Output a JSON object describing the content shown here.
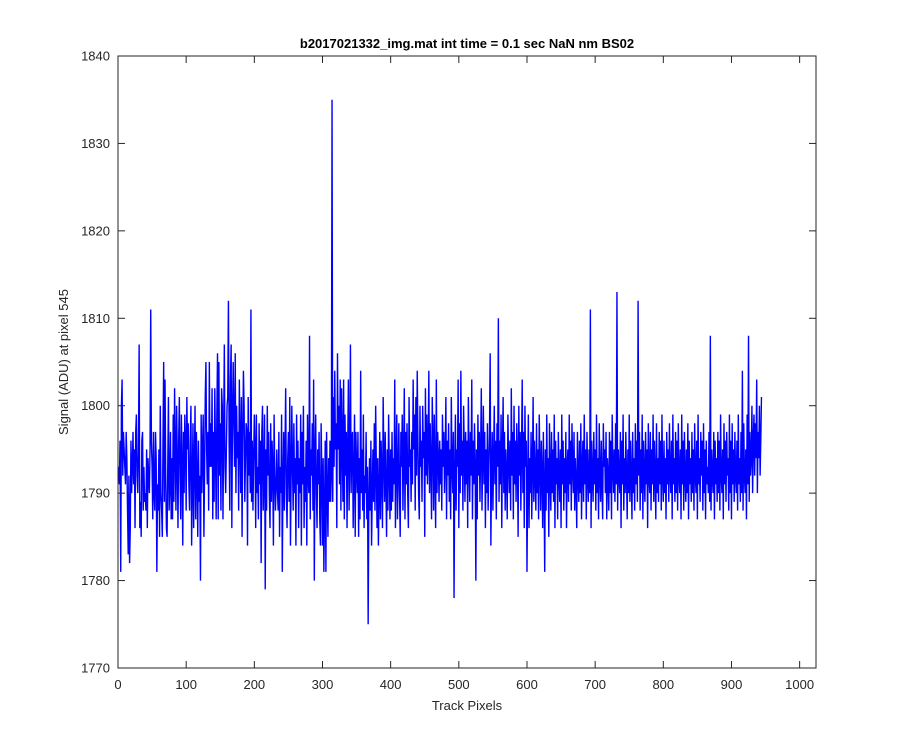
{
  "chart_data": {
    "type": "line",
    "title": "b2017021332_img.mat int time = 0.1 sec  NaN nm BS02",
    "xlabel": "Track Pixels",
    "ylabel": "Signal (ADU) at pixel 545",
    "xlim": [
      0,
      1024
    ],
    "ylim": [
      1770,
      1840
    ],
    "xticks": [
      0,
      100,
      200,
      300,
      400,
      500,
      600,
      700,
      800,
      900,
      1000
    ],
    "yticks": [
      1770,
      1780,
      1790,
      1800,
      1810,
      1820,
      1830,
      1840
    ],
    "xtick_labels": [
      "0",
      "100",
      "200",
      "300",
      "400",
      "500",
      "600",
      "700",
      "800",
      "900",
      "1000"
    ],
    "ytick_labels": [
      "1770",
      "1780",
      "1790",
      "1800",
      "1810",
      "1820",
      "1830",
      "1840"
    ],
    "grid": false,
    "legend": "none",
    "line_color": "#0000ff",
    "series": [
      {
        "x_start": 1,
        "x_step": 1,
        "values": [
          1793,
          1791,
          1796,
          1781,
          1800,
          1803,
          1792,
          1797,
          1795,
          1793,
          1791,
          1797,
          1794,
          1788,
          1783,
          1792,
          1782,
          1786,
          1796,
          1790,
          1793,
          1797,
          1791,
          1795,
          1786,
          1797,
          1799,
          1792,
          1790,
          1795,
          1807,
          1786,
          1789,
          1785,
          1796,
          1797,
          1788,
          1793,
          1789,
          1790,
          1788,
          1795,
          1786,
          1794,
          1792,
          1790,
          1795,
          1811,
          1796,
          1793,
          1787,
          1797,
          1790,
          1788,
          1797,
          1794,
          1781,
          1791,
          1788,
          1795,
          1785,
          1800,
          1790,
          1788,
          1785,
          1796,
          1805,
          1789,
          1803,
          1792,
          1786,
          1785,
          1793,
          1801,
          1788,
          1791,
          1797,
          1787,
          1794,
          1787,
          1799,
          1789,
          1802,
          1795,
          1788,
          1800,
          1794,
          1786,
          1796,
          1801,
          1792,
          1787,
          1799,
          1793,
          1784,
          1797,
          1790,
          1799,
          1796,
          1788,
          1801,
          1795,
          1798,
          1791,
          1788,
          1796,
          1800,
          1784,
          1791,
          1798,
          1786,
          1793,
          1800,
          1787,
          1797,
          1792,
          1785,
          1796,
          1789,
          1792,
          1780,
          1799,
          1790,
          1795,
          1799,
          1785,
          1792,
          1801,
          1805,
          1795,
          1791,
          1797,
          1788,
          1805,
          1793,
          1798,
          1793,
          1802,
          1787,
          1797,
          1789,
          1802,
          1795,
          1787,
          1799,
          1806,
          1787,
          1805,
          1792,
          1798,
          1788,
          1802,
          1800,
          1787,
          1797,
          1807,
          1793,
          1790,
          1795,
          1800,
          1801,
          1812,
          1796,
          1788,
          1803,
          1807,
          1786,
          1799,
          1805,
          1798,
          1793,
          1806,
          1790,
          1800,
          1794,
          1797,
          1788,
          1803,
          1796,
          1790,
          1801,
          1785,
          1796,
          1804,
          1800,
          1789,
          1794,
          1798,
          1797,
          1784,
          1801,
          1792,
          1797,
          1790,
          1811,
          1789,
          1796,
          1788,
          1794,
          1799,
          1795,
          1786,
          1799,
          1790,
          1793,
          1787,
          1798,
          1791,
          1796,
          1782,
          1797,
          1800,
          1788,
          1792,
          1799,
          1779,
          1795,
          1788,
          1800,
          1792,
          1797,
          1790,
          1786,
          1798,
          1789,
          1796,
          1793,
          1784,
          1799,
          1792,
          1788,
          1791,
          1795,
          1790,
          1788,
          1797,
          1785,
          1793,
          1790,
          1799,
          1781,
          1791,
          1797,
          1788,
          1795,
          1802,
          1790,
          1786,
          1794,
          1797,
          1789,
          1801,
          1784,
          1792,
          1800,
          1793,
          1788,
          1798,
          1790,
          1794,
          1784,
          1799,
          1791,
          1796,
          1786,
          1794,
          1790,
          1799,
          1784,
          1797,
          1791,
          1800,
          1786,
          1793,
          1789,
          1796,
          1784,
          1799,
          1792,
          1790,
          1808,
          1787,
          1795,
          1792,
          1798,
          1788,
          1803,
          1780,
          1794,
          1799,
          1790,
          1786,
          1795,
          1791,
          1797,
          1787,
          1784,
          1798,
          1792,
          1784,
          1794,
          1781,
          1788,
          1796,
          1781,
          1797,
          1790,
          1785,
          1794,
          1789,
          1796,
          1789,
          1792,
          1835,
          1789,
          1801,
          1793,
          1804,
          1795,
          1798,
          1786,
          1806,
          1795,
          1800,
          1791,
          1803,
          1788,
          1802,
          1796,
          1789,
          1803,
          1787,
          1799,
          1792,
          1797,
          1786,
          1795,
          1803,
          1788,
          1794,
          1807,
          1790,
          1796,
          1797,
          1786,
          1792,
          1799,
          1785,
          1797,
          1793,
          1790,
          1797,
          1785,
          1794,
          1787,
          1804,
          1790,
          1795,
          1788,
          1799,
          1786,
          1792,
          1790,
          1797,
          1787,
          1793,
          1775,
          1789,
          1794,
          1788,
          1796,
          1784,
          1790,
          1795,
          1789,
          1798,
          1788,
          1800,
          1793,
          1786,
          1794,
          1784,
          1790,
          1797,
          1787,
          1796,
          1792,
          1786,
          1801,
          1794,
          1789,
          1797,
          1791,
          1785,
          1795,
          1788,
          1799,
          1793,
          1787,
          1795,
          1788,
          1797,
          1789,
          1794,
          1791,
          1803,
          1786,
          1794,
          1799,
          1787,
          1792,
          1798,
          1790,
          1785,
          1797,
          1793,
          1799,
          1788,
          1794,
          1802,
          1787,
          1797,
          1791,
          1798,
          1790,
          1786,
          1801,
          1793,
          1795,
          1789,
          1797,
          1791,
          1803,
          1795,
          1799,
          1788,
          1801,
          1792,
          1804,
          1796,
          1790,
          1787,
          1800,
          1793,
          1796,
          1789,
          1800,
          1794,
          1797,
          1785,
          1802,
          1792,
          1799,
          1791,
          1795,
          1804,
          1790,
          1798,
          1793,
          1787,
          1801,
          1796,
          1788,
          1799,
          1792,
          1786,
          1803,
          1790,
          1797,
          1794,
          1789,
          1796,
          1791,
          1795,
          1788,
          1799,
          1793,
          1797,
          1790,
          1794,
          1801,
          1787,
          1796,
          1792,
          1798,
          1789,
          1795,
          1787,
          1801,
          1793,
          1790,
          1797,
          1778,
          1792,
          1799,
          1788,
          1795,
          1793,
          1803,
          1786,
          1798,
          1790,
          1804,
          1792,
          1796,
          1788,
          1800,
          1795,
          1789,
          1797,
          1791,
          1796,
          1786,
          1801,
          1794,
          1789,
          1797,
          1792,
          1803,
          1787,
          1796,
          1791,
          1798,
          1793,
          1780,
          1795,
          1787,
          1799,
          1792,
          1797,
          1789,
          1795,
          1802,
          1788,
          1794,
          1800,
          1791,
          1797,
          1786,
          1795,
          1790,
          1798,
          1788,
          1793,
          1797,
          1806,
          1784,
          1792,
          1797,
          1788,
          1794,
          1800,
          1791,
          1796,
          1787,
          1798,
          1793,
          1810,
          1789,
          1796,
          1791,
          1799,
          1786,
          1795,
          1801,
          1790,
          1797,
          1788,
          1795,
          1792,
          1787,
          1799,
          1794,
          1790,
          1796,
          1788,
          1802,
          1792,
          1797,
          1787,
          1800,
          1791,
          1796,
          1789,
          1798,
          1794,
          1785,
          1800,
          1792,
          1797,
          1788,
          1795,
          1803,
          1790,
          1797,
          1786,
          1800,
          1793,
          1796,
          1781,
          1791,
          1799,
          1786,
          1794,
          1790,
          1797,
          1787,
          1793,
          1801,
          1789,
          1796,
          1792,
          1788,
          1798,
          1790,
          1795,
          1787,
          1799,
          1793,
          1788,
          1796,
          1792,
          1786,
          1797,
          1791,
          1781,
          1795,
          1788,
          1799,
          1790,
          1794,
          1785,
          1798,
          1792,
          1788,
          1797,
          1790,
          1795,
          1789,
          1799,
          1786,
          1796,
          1791,
          1794,
          1787,
          1797,
          1792,
          1789,
          1795,
          1786,
          1799,
          1791,
          1796,
          1788,
          1794,
          1790,
          1797,
          1786,
          1793,
          1795,
          1789,
          1799,
          1791,
          1796,
          1788,
          1798,
          1793,
          1790,
          1797,
          1788,
          1794,
          1791,
          1786,
          1797,
          1792,
          1789,
          1796,
          1790,
          1798,
          1787,
          1793,
          1796,
          1789,
          1799,
          1791,
          1795,
          1787,
          1797,
          1792,
          1789,
          1795,
          1790,
          1811,
          1786,
          1796,
          1792,
          1789,
          1797,
          1791,
          1795,
          1788,
          1799,
          1790,
          1794,
          1787,
          1798,
          1792,
          1789,
          1796,
          1791,
          1787,
          1798,
          1793,
          1795,
          1790,
          1797,
          1787,
          1794,
          1792,
          1788,
          1797,
          1790,
          1796,
          1787,
          1799,
          1793,
          1790,
          1795,
          1789,
          1798,
          1791,
          1813,
          1788,
          1795,
          1792,
          1790,
          1797,
          1786,
          1796,
          1791,
          1799,
          1788,
          1794,
          1790,
          1797,
          1792,
          1787,
          1795,
          1790,
          1799,
          1789,
          1796,
          1792,
          1787,
          1797,
          1790,
          1794,
          1788,
          1798,
          1791,
          1796,
          1789,
          1812,
          1792,
          1797,
          1788,
          1795,
          1790,
          1799,
          1787,
          1796,
          1792,
          1789,
          1797,
          1791,
          1795,
          1786,
          1798,
          1792,
          1790,
          1797,
          1788,
          1795,
          1791,
          1799,
          1789,
          1796,
          1792,
          1787,
          1798,
          1790,
          1794,
          1789,
          1797,
          1791,
          1796,
          1788,
          1799,
          1792,
          1789,
          1796,
          1790,
          1794,
          1787,
          1797,
          1791,
          1795,
          1789,
          1798,
          1792,
          1790,
          1796,
          1787,
          1799,
          1791,
          1794,
          1789,
          1797,
          1790,
          1796,
          1788,
          1798,
          1792,
          1790,
          1795,
          1787,
          1799,
          1791,
          1796,
          1788,
          1797,
          1792,
          1789,
          1795,
          1790,
          1798,
          1787,
          1796,
          1791,
          1794,
          1789,
          1797,
          1790,
          1795,
          1788,
          1798,
          1792,
          1790,
          1796,
          1787,
          1799,
          1791,
          1794,
          1789,
          1797,
          1792,
          1796,
          1788,
          1798,
          1790,
          1795,
          1787,
          1796,
          1791,
          1793,
          1790,
          1797,
          1789,
          1808,
          1788,
          1795,
          1792,
          1790,
          1797,
          1787,
          1796,
          1791,
          1794,
          1789,
          1797,
          1790,
          1796,
          1788,
          1799,
          1792,
          1790,
          1795,
          1787,
          1798,
          1791,
          1796,
          1789,
          1797,
          1792,
          1794,
          1788,
          1799,
          1790,
          1796,
          1787,
          1798,
          1791,
          1795,
          1789,
          1797,
          1792,
          1790,
          1796,
          1788,
          1799,
          1791,
          1794,
          1789,
          1797,
          1790,
          1804,
          1788,
          1798,
          1792,
          1790,
          1795,
          1787,
          1799,
          1791,
          1808,
          1789,
          1797,
          1792,
          1794,
          1800,
          1790,
          1796,
          1799,
          1792,
          1798,
          1794,
          1803,
          1790,
          1797,
          1794,
          1800,
          1792,
          1796,
          1801
        ]
      }
    ]
  }
}
